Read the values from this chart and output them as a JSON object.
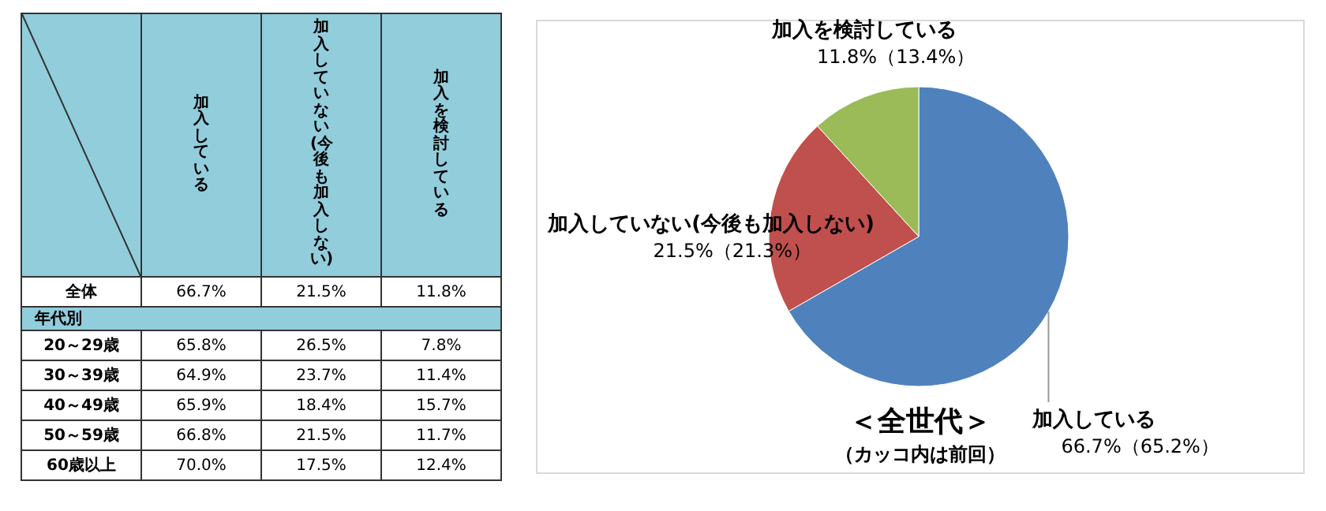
{
  "chart_data": [
    {
      "type": "other",
      "categories": [
        "全体",
        "年代別",
        "20～29歳",
        "30～39歳",
        "40～49歳",
        "50～59歳",
        "60歳以上"
      ],
      "series": [
        {
          "name": "加入している",
          "values": [
            66.7,
            null,
            65.8,
            64.9,
            65.9,
            66.8,
            70.0
          ],
          "value_labels": [
            "66.7%",
            null,
            "65.8%",
            "64.9%",
            "65.9%",
            "66.8%",
            "70.0%"
          ]
        },
        {
          "name": "加入していない(今後も加入しない)",
          "values": [
            21.5,
            null,
            26.5,
            23.7,
            18.4,
            21.5,
            17.5
          ],
          "value_labels": [
            "21.5%",
            null,
            "26.5%",
            "23.7%",
            "18.4%",
            "21.5%",
            "17.5%"
          ]
        },
        {
          "name": "加入を検討している",
          "values": [
            11.8,
            null,
            7.8,
            11.4,
            15.7,
            11.7,
            12.4
          ],
          "value_labels": [
            "11.8%",
            null,
            "7.8%",
            "11.4%",
            "15.7%",
            "11.7%",
            "12.4%"
          ]
        }
      ]
    },
    {
      "type": "pie",
      "title": "＜全世代＞",
      "subtitle": "（カッコ内は前回）",
      "categories": [
        "加入している",
        "加入していない(今後も加入しない)",
        "加入を検討している"
      ],
      "values": [
        66.7,
        21.5,
        11.8
      ],
      "value_labels": [
        "66.7%（65.2%）",
        "21.5%（21.3%）",
        "11.8%（13.4%）"
      ],
      "colors": [
        "#4f81bd",
        "#c0504d",
        "#9bbb59"
      ]
    }
  ]
}
